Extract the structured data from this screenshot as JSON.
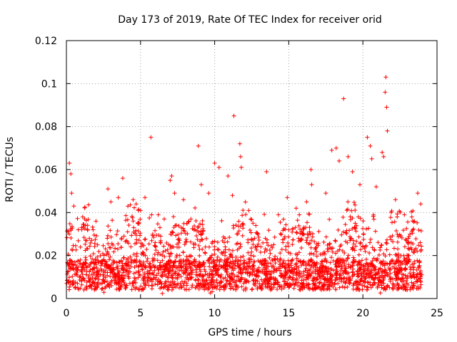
{
  "chart_data": {
    "type": "scatter",
    "title": "Day 173 of 2019, Rate Of TEC Index for receiver orid",
    "xlabel": "GPS time / hours",
    "ylabel": "ROTI / TECUs",
    "xlim": [
      0,
      25
    ],
    "ylim": [
      0,
      0.12
    ],
    "x_ticks": [
      0,
      5,
      10,
      15,
      20,
      25
    ],
    "x_tick_labels": [
      "0",
      "5",
      "10",
      "15",
      "20",
      "25"
    ],
    "y_ticks": [
      0,
      0.02,
      0.04,
      0.06,
      0.08,
      0.1,
      0.12
    ],
    "y_tick_labels": [
      "0",
      "0.02",
      "0.04",
      "0.06",
      "0.08",
      "0.1",
      "0.12"
    ],
    "grid": true,
    "marker": "+",
    "series": [
      {
        "name": "ROTI",
        "color": "#ff0000",
        "x": [
          0.2,
          0.3,
          0.35,
          0.5,
          1.1,
          1.3,
          1.8,
          2.8,
          3.0,
          3.5,
          3.8,
          4.5,
          5.0,
          5.3,
          5.7,
          6.2,
          6.6,
          7.0,
          7.1,
          7.3,
          7.9,
          8.4,
          8.9,
          9.1,
          9.6,
          10.0,
          10.3,
          10.9,
          11.2,
          11.3,
          11.7,
          11.75,
          11.8,
          12.3,
          13.5,
          14.3,
          14.9,
          15.5,
          16.2,
          16.5,
          16.55,
          17.5,
          17.9,
          18.2,
          18.4,
          18.7,
          19.0,
          19.3,
          19.8,
          20.3,
          20.5,
          20.6,
          20.9,
          21.3,
          21.4,
          21.5,
          21.55,
          21.6,
          21.65,
          22.2,
          22.8,
          23.3,
          23.7,
          23.9
        ],
        "y": [
          0.063,
          0.058,
          0.049,
          0.043,
          0.038,
          0.034,
          0.032,
          0.051,
          0.045,
          0.047,
          0.056,
          0.046,
          0.041,
          0.047,
          0.075,
          0.039,
          0.037,
          0.055,
          0.057,
          0.049,
          0.046,
          0.037,
          0.071,
          0.053,
          0.049,
          0.063,
          0.061,
          0.057,
          0.048,
          0.085,
          0.072,
          0.066,
          0.061,
          0.041,
          0.059,
          0.039,
          0.047,
          0.042,
          0.045,
          0.06,
          0.053,
          0.049,
          0.069,
          0.07,
          0.064,
          0.093,
          0.066,
          0.059,
          0.053,
          0.075,
          0.071,
          0.065,
          0.052,
          0.068,
          0.066,
          0.096,
          0.103,
          0.089,
          0.078,
          0.046,
          0.039,
          0.038,
          0.049,
          0.044
        ]
      }
    ],
    "background_band": {
      "description": "dense cloud of ROTI samples across the whole day",
      "x_range": [
        0,
        24
      ],
      "y_floor": 0.004,
      "y_typical_top": 0.03
    }
  }
}
